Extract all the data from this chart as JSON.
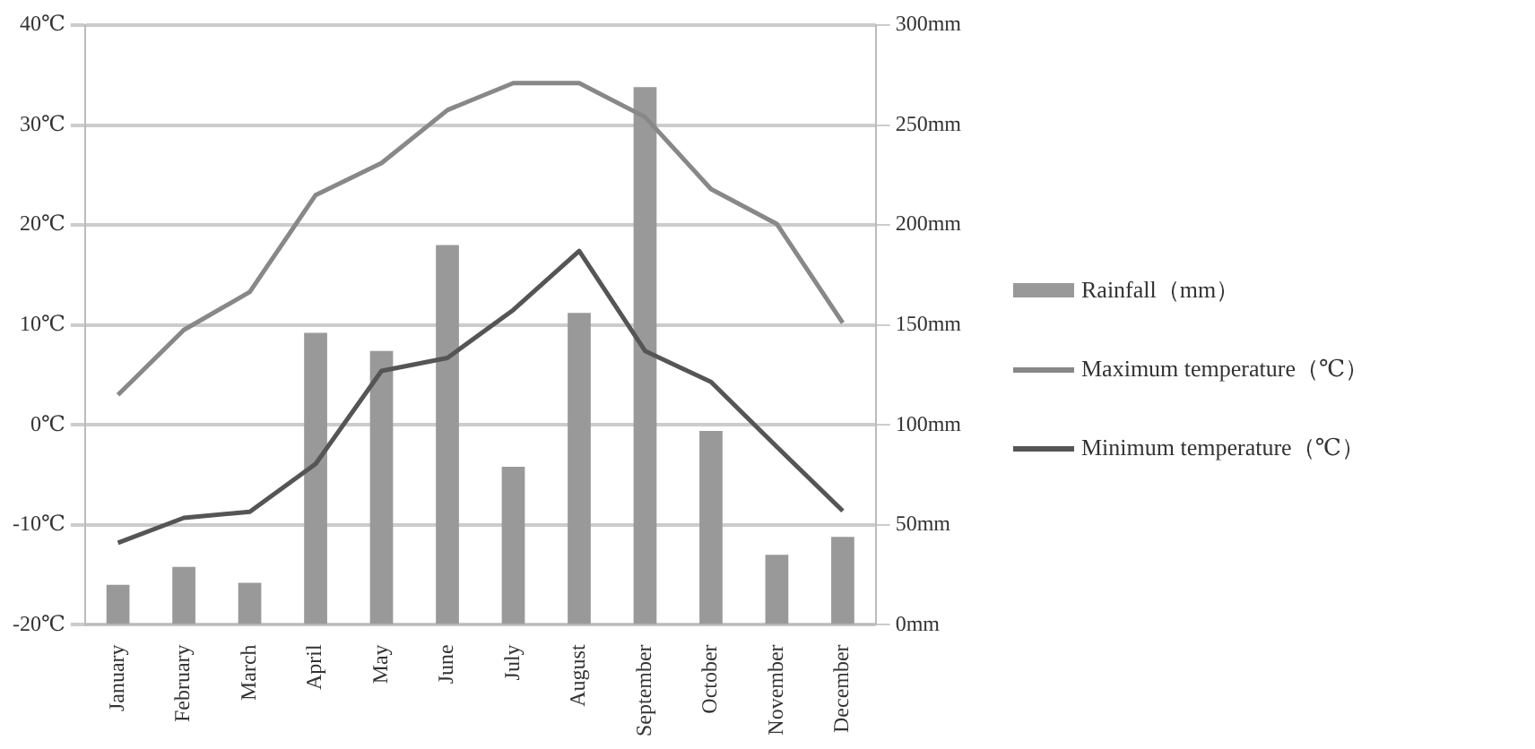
{
  "chart_data": {
    "type": "bar",
    "categories": [
      "January",
      "February",
      "March",
      "April",
      "May",
      "June",
      "July",
      "August",
      "September",
      "October",
      "November",
      "December"
    ],
    "series": [
      {
        "name": "Rainfall（mm）",
        "axis": "y2",
        "color": "#999999",
        "values": [
          20,
          29,
          21,
          146,
          137,
          190,
          79,
          156,
          269,
          97,
          35,
          44
        ]
      },
      {
        "name": "Maximum temperature（℃）",
        "type": "line",
        "axis": "y",
        "color": "#888888",
        "values": [
          3,
          9.5,
          13.3,
          23,
          26.2,
          31.5,
          34.2,
          34.2,
          30.8,
          23.6,
          20.1,
          10.2
        ]
      },
      {
        "name": "Minimum temperature（℃）",
        "type": "line",
        "axis": "y",
        "color": "#555555",
        "values": [
          -11.8,
          -9.3,
          -8.7,
          -3.9,
          5.4,
          6.7,
          11.5,
          17.4,
          7.4,
          4.3,
          -2.2,
          -8.6
        ]
      }
    ],
    "ylim": [
      -20,
      40
    ],
    "yticks": [
      {
        "value": -20,
        "label": "-20℃"
      },
      {
        "value": -10,
        "label": "-10℃"
      },
      {
        "value": 0,
        "label": "0℃"
      },
      {
        "value": 10,
        "label": "10℃"
      },
      {
        "value": 20,
        "label": "20℃"
      },
      {
        "value": 30,
        "label": "30℃"
      },
      {
        "value": 40,
        "label": "40℃"
      }
    ],
    "y2lim": [
      0,
      300
    ],
    "y2ticks": [
      {
        "value": 0,
        "label": "0mm"
      },
      {
        "value": 50,
        "label": "50mm"
      },
      {
        "value": 100,
        "label": "100mm"
      },
      {
        "value": 150,
        "label": "150mm"
      },
      {
        "value": 200,
        "label": "200mm"
      },
      {
        "value": 250,
        "label": "250mm"
      },
      {
        "value": 300,
        "label": "300mm"
      }
    ],
    "grid": "y",
    "legend": "right",
    "marker": "none",
    "line_style": "solid"
  }
}
